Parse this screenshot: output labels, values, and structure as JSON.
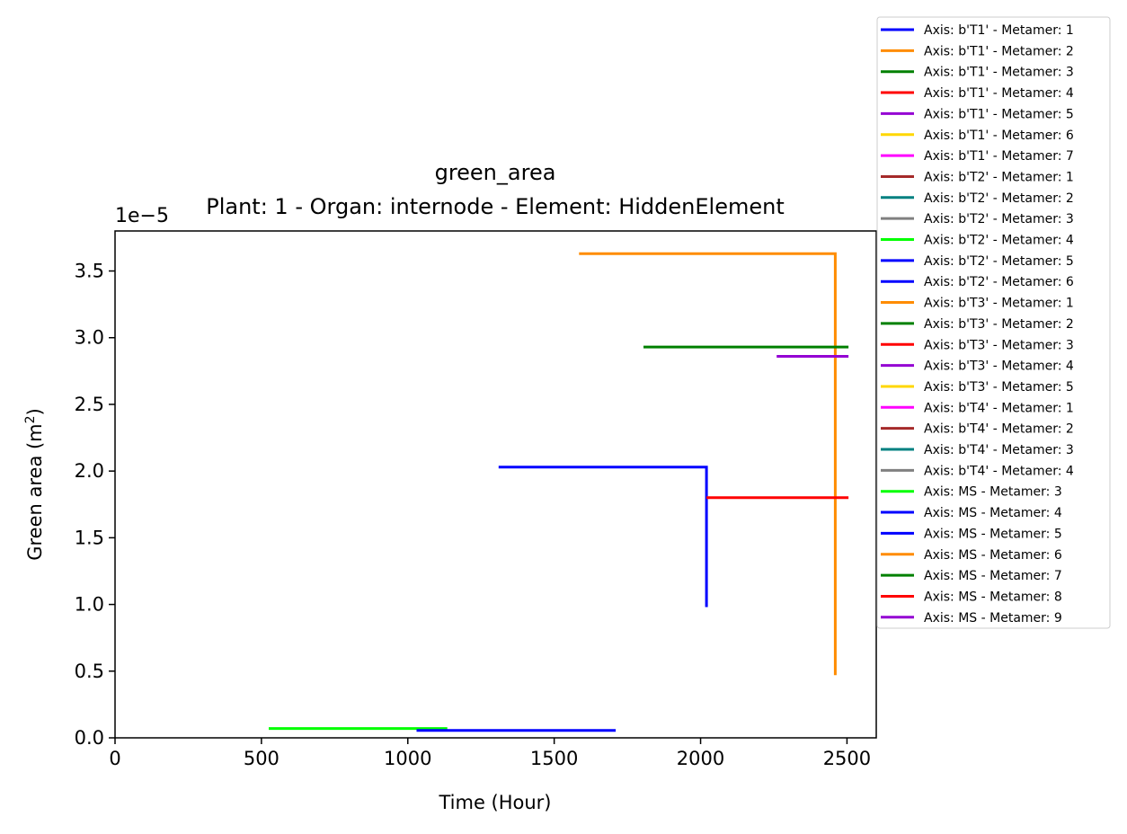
{
  "chart_data": {
    "type": "line",
    "title": "green_area",
    "subtitle": "Plant: 1 - Organ: internode - Element: HiddenElement",
    "xlabel": "Time (Hour)",
    "ylabel_text": "Green area (m",
    "ylabel_sup": "2",
    "ylabel_close": ")",
    "offset_text": "1e−5",
    "xlim": [
      0,
      2600
    ],
    "ylim": [
      0,
      3.8
    ],
    "x_ticks": [
      0,
      500,
      1000,
      1500,
      2000,
      2500
    ],
    "x_tick_labels": [
      "0",
      "500",
      "1000",
      "1500",
      "2000",
      "2500"
    ],
    "y_ticks": [
      0,
      0.5,
      1.0,
      1.5,
      2.0,
      2.5,
      3.0,
      3.5
    ],
    "y_tick_labels": [
      "0.0",
      "0.5",
      "1.0",
      "1.5",
      "2.0",
      "2.5",
      "3.0",
      "3.5"
    ],
    "grid": false,
    "legend_position": "outside-top-right",
    "series": [
      {
        "name": "Axis: b'T1' - Metamer: 1",
        "color": "#0000ff",
        "points": []
      },
      {
        "name": "Axis: b'T1' - Metamer: 2",
        "color": "#ff8c00",
        "points": []
      },
      {
        "name": "Axis: b'T1' - Metamer: 3",
        "color": "#008000",
        "points": []
      },
      {
        "name": "Axis: b'T1' - Metamer: 4",
        "color": "#ff0000",
        "points": []
      },
      {
        "name": "Axis: b'T1' - Metamer: 5",
        "color": "#9400d3",
        "points": []
      },
      {
        "name": "Axis: b'T1' - Metamer: 6",
        "color": "#ffd700",
        "points": []
      },
      {
        "name": "Axis: b'T1' - Metamer: 7",
        "color": "#ff00ff",
        "points": []
      },
      {
        "name": "Axis: b'T2' - Metamer: 1",
        "color": "#a52a2a",
        "points": []
      },
      {
        "name": "Axis: b'T2' - Metamer: 2",
        "color": "#008080",
        "points": []
      },
      {
        "name": "Axis: b'T2' - Metamer: 3",
        "color": "#808080",
        "points": []
      },
      {
        "name": "Axis: b'T2' - Metamer: 4",
        "color": "#00ff00",
        "points": []
      },
      {
        "name": "Axis: b'T2' - Metamer: 5",
        "color": "#0000ff",
        "points": []
      },
      {
        "name": "Axis: b'T2' - Metamer: 6",
        "color": "#0000ff",
        "points": []
      },
      {
        "name": "Axis: b'T3' - Metamer: 1",
        "color": "#ff8c00",
        "points": []
      },
      {
        "name": "Axis: b'T3' - Metamer: 2",
        "color": "#008000",
        "points": []
      },
      {
        "name": "Axis: b'T3' - Metamer: 3",
        "color": "#ff0000",
        "points": []
      },
      {
        "name": "Axis: b'T3' - Metamer: 4",
        "color": "#9400d3",
        "points": []
      },
      {
        "name": "Axis: b'T3' - Metamer: 5",
        "color": "#ffd700",
        "points": []
      },
      {
        "name": "Axis: b'T4' - Metamer: 1",
        "color": "#ff00ff",
        "points": []
      },
      {
        "name": "Axis: b'T4' - Metamer: 2",
        "color": "#a52a2a",
        "points": []
      },
      {
        "name": "Axis: b'T4' - Metamer: 3",
        "color": "#008080",
        "points": []
      },
      {
        "name": "Axis: b'T4' - Metamer: 4",
        "color": "#808080",
        "points": []
      },
      {
        "name": "Axis: MS - Metamer: 3",
        "color": "#00ff00",
        "points": [
          [
            525,
            0.07
          ],
          [
            1135,
            0.07
          ]
        ]
      },
      {
        "name": "Axis: MS - Metamer: 4",
        "color": "#0000ff",
        "points": [
          [
            1030,
            0.055
          ],
          [
            1710,
            0.055
          ]
        ]
      },
      {
        "name": "Axis: MS - Metamer: 5",
        "color": "#0000ff",
        "points": [
          [
            1310,
            2.03
          ],
          [
            2020,
            2.03
          ],
          [
            2020,
            0.98
          ]
        ]
      },
      {
        "name": "Axis: MS - Metamer: 6",
        "color": "#ff8c00",
        "points": [
          [
            1585,
            3.63
          ],
          [
            2460,
            3.63
          ],
          [
            2460,
            0.47
          ]
        ]
      },
      {
        "name": "Axis: MS - Metamer: 7",
        "color": "#008000",
        "points": [
          [
            1805,
            2.93
          ],
          [
            2505,
            2.93
          ]
        ]
      },
      {
        "name": "Axis: MS - Metamer: 8",
        "color": "#ff0000",
        "points": [
          [
            2020,
            1.8
          ],
          [
            2505,
            1.8
          ]
        ]
      },
      {
        "name": "Axis: MS - Metamer: 9",
        "color": "#9400d3",
        "points": [
          [
            2260,
            2.86
          ],
          [
            2505,
            2.86
          ]
        ]
      }
    ]
  }
}
